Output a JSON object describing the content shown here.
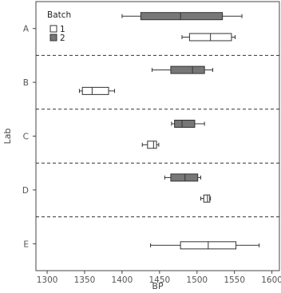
{
  "chart_data": {
    "type": "boxplot",
    "xlabel": "BP",
    "ylabel": "Lab",
    "xlim": [
      1285,
      1610
    ],
    "xticks": [
      "1300",
      "1350",
      "1400",
      "1450",
      "1500",
      "1550",
      "1600"
    ],
    "categories": [
      "A",
      "B",
      "C",
      "D",
      "E"
    ],
    "legend": {
      "title": "Batch",
      "position": "top-left",
      "entries": [
        {
          "label": "1",
          "color": "#ffffff"
        },
        {
          "label": "2",
          "color": "#777777"
        }
      ]
    },
    "groups": [
      {
        "lab": "A",
        "boxes": [
          {
            "batch": "2",
            "min": 1400,
            "q1": 1425,
            "median": 1478,
            "q3": 1534,
            "max": 1560
          },
          {
            "batch": "1",
            "min": 1480,
            "q1": 1490,
            "median": 1518,
            "q3": 1546,
            "max": 1551
          }
        ]
      },
      {
        "lab": "B",
        "boxes": [
          {
            "batch": "2",
            "min": 1440,
            "q1": 1465,
            "median": 1494,
            "q3": 1510,
            "max": 1521
          },
          {
            "batch": "1",
            "min": 1343,
            "q1": 1347,
            "median": 1360,
            "q3": 1382,
            "max": 1390
          }
        ]
      },
      {
        "lab": "C",
        "boxes": [
          {
            "batch": "2",
            "min": 1466,
            "q1": 1470,
            "median": 1480,
            "q3": 1497,
            "max": 1510
          },
          {
            "batch": "1",
            "min": 1427,
            "q1": 1434,
            "median": 1442,
            "q3": 1446,
            "max": 1449
          }
        ]
      },
      {
        "lab": "D",
        "boxes": [
          {
            "batch": "2",
            "min": 1457,
            "q1": 1465,
            "median": 1484,
            "q3": 1501,
            "max": 1505
          },
          {
            "batch": "1",
            "min": 1505,
            "q1": 1509,
            "median": 1514,
            "q3": 1517,
            "max": 1518
          }
        ]
      },
      {
        "lab": "E",
        "boxes": [
          {
            "batch": "1",
            "min": 1438,
            "q1": 1478,
            "median": 1515,
            "q3": 1552,
            "max": 1583
          }
        ]
      }
    ],
    "separators": "dashed",
    "colors": {
      "batch1": "#ffffff",
      "batch2": "#777777",
      "frame": "#444444"
    }
  }
}
